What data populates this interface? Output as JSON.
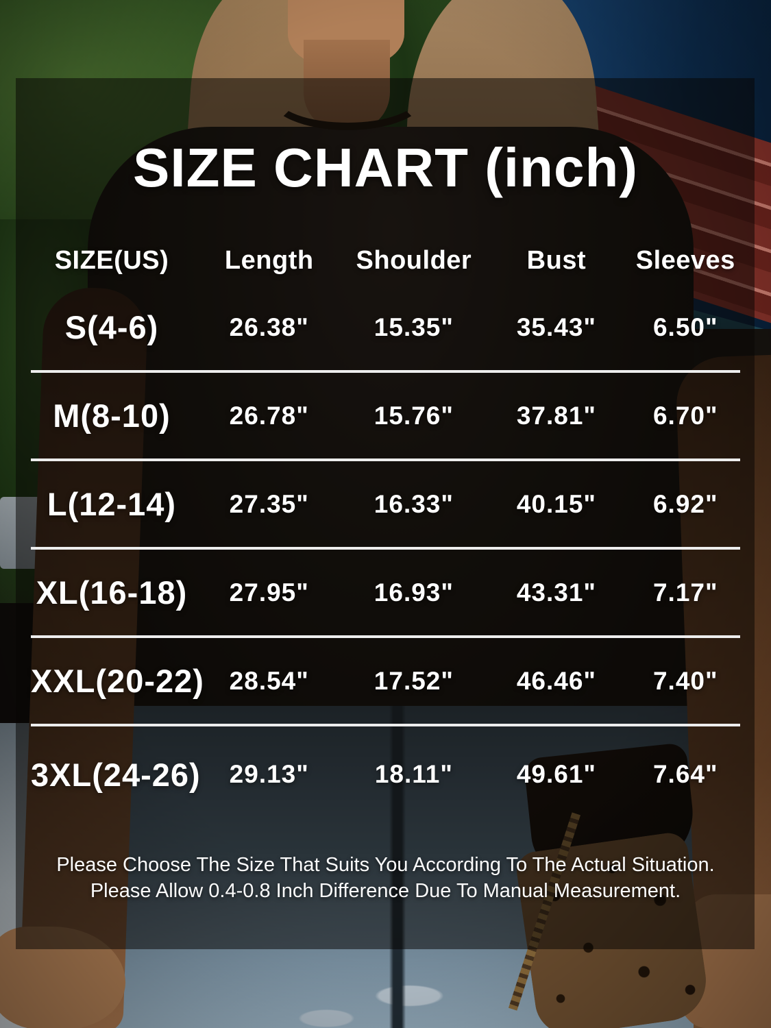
{
  "title": "SIZE CHART (inch)",
  "chart_data": {
    "type": "table",
    "title": "SIZE CHART (inch)",
    "units": "inch",
    "columns": [
      "SIZE(US)",
      "Length",
      "Shoulder",
      "Bust",
      "Sleeves"
    ],
    "rows": [
      [
        "S(4-6)",
        "26.38\"",
        "15.35\"",
        "35.43\"",
        "6.50\""
      ],
      [
        "M(8-10)",
        "26.78\"",
        "15.76\"",
        "37.81\"",
        "6.70\""
      ],
      [
        "L(12-14)",
        "27.35\"",
        "16.33\"",
        "40.15\"",
        "6.92\""
      ],
      [
        "XL(16-18)",
        "27.95\"",
        "16.93\"",
        "43.31\"",
        "7.17\""
      ],
      [
        "XXL(20-22)",
        "28.54\"",
        "17.52\"",
        "46.46\"",
        "7.40\""
      ],
      [
        "3XL(24-26)",
        "29.13\"",
        "18.11\"",
        "49.61\"",
        "7.64\""
      ]
    ]
  },
  "footer": {
    "line1": "Please Choose The Size That Suits You According To The Actual Situation.",
    "line2": "Please Allow 0.4-0.8 Inch Difference Due To Manual Measurement."
  },
  "colors": {
    "text": "#ffffff",
    "divider": "#ededed",
    "overlay": "#080604"
  }
}
